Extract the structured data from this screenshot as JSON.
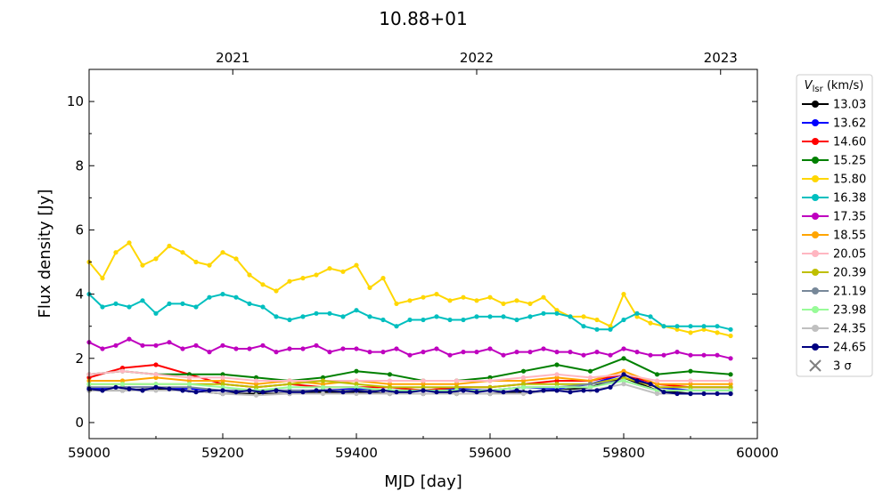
{
  "chart_data": {
    "type": "line",
    "title": "10.88+01",
    "xlabel": "MJD [day]",
    "ylabel": "Flux density [Jy]",
    "xlim": [
      59000,
      60000
    ],
    "ylim": [
      -0.5,
      11
    ],
    "xticks": [
      "59000",
      "59200",
      "59400",
      "59600",
      "59800",
      "60000"
    ],
    "yticks": [
      "0",
      "2",
      "4",
      "6",
      "8",
      "10"
    ],
    "top_axis_ticks": [
      {
        "label": "2021",
        "mjd": 59215
      },
      {
        "label": "2022",
        "mjd": 59580
      },
      {
        "label": "2023",
        "mjd": 59945
      }
    ],
    "legend": {
      "title": "V_lsr (km/s)",
      "title_main": "V",
      "title_sub": "lsr",
      "title_unit": " (km/s)",
      "position": "outside-right",
      "extra_entry": {
        "label": "3 σ",
        "color": "#7f7f7f",
        "marker": "x"
      }
    },
    "grid": false,
    "series": [
      {
        "name": "13.03",
        "color": "#000000",
        "x": [
          59000,
          59050,
          59100,
          59150,
          59200,
          59250,
          59300,
          59350,
          59400,
          59450,
          59500,
          59550,
          59600,
          59650,
          59700,
          59750,
          59800,
          59850,
          59900,
          59960
        ],
        "y": [
          1.0,
          1.0,
          1.05,
          1.0,
          0.9,
          0.9,
          0.9,
          0.95,
          0.95,
          0.9,
          0.9,
          0.9,
          0.9,
          0.95,
          1.0,
          1.1,
          1.4,
          1.0,
          0.9,
          0.9
        ]
      },
      {
        "name": "13.62",
        "color": "#0000ff",
        "x": [
          59000,
          59050,
          59100,
          59150,
          59200,
          59250,
          59300,
          59350,
          59400,
          59450,
          59500,
          59550,
          59600,
          59650,
          59700,
          59750,
          59800,
          59850,
          59900,
          59960
        ],
        "y": [
          1.05,
          1.1,
          1.1,
          1.05,
          1.0,
          1.0,
          1.0,
          1.0,
          1.05,
          1.0,
          1.0,
          1.05,
          1.0,
          1.1,
          1.05,
          1.2,
          1.5,
          1.1,
          1.0,
          1.0
        ]
      },
      {
        "name": "14.60",
        "color": "#ff0000",
        "x": [
          59000,
          59050,
          59100,
          59150,
          59200,
          59250,
          59300,
          59350,
          59400,
          59450,
          59500,
          59550,
          59600,
          59650,
          59700,
          59750,
          59800,
          59850,
          59900,
          59960
        ],
        "y": [
          1.4,
          1.7,
          1.8,
          1.5,
          1.2,
          1.1,
          1.2,
          1.1,
          1.1,
          1.1,
          1.0,
          1.1,
          1.1,
          1.2,
          1.3,
          1.3,
          1.5,
          1.2,
          1.1,
          1.1
        ]
      },
      {
        "name": "15.25",
        "color": "#008000",
        "x": [
          59000,
          59050,
          59100,
          59150,
          59200,
          59250,
          59300,
          59350,
          59400,
          59450,
          59500,
          59550,
          59600,
          59650,
          59700,
          59750,
          59800,
          59850,
          59900,
          59960
        ],
        "y": [
          1.5,
          1.6,
          1.5,
          1.5,
          1.5,
          1.4,
          1.3,
          1.4,
          1.6,
          1.5,
          1.3,
          1.3,
          1.4,
          1.6,
          1.8,
          1.6,
          2.0,
          1.5,
          1.6,
          1.5
        ]
      },
      {
        "name": "15.80",
        "color": "#ffd700",
        "x": [
          59000,
          59020,
          59040,
          59060,
          59080,
          59100,
          59120,
          59140,
          59160,
          59180,
          59200,
          59220,
          59240,
          59260,
          59280,
          59300,
          59320,
          59340,
          59360,
          59380,
          59400,
          59420,
          59440,
          59460,
          59480,
          59500,
          59520,
          59540,
          59560,
          59580,
          59600,
          59620,
          59640,
          59660,
          59680,
          59700,
          59720,
          59740,
          59760,
          59780,
          59800,
          59820,
          59840,
          59860,
          59880,
          59900,
          59920,
          59940,
          59960
        ],
        "y": [
          5.0,
          4.5,
          5.3,
          5.6,
          4.9,
          5.1,
          5.5,
          5.3,
          5.0,
          4.9,
          5.3,
          5.1,
          4.6,
          4.3,
          4.1,
          4.4,
          4.5,
          4.6,
          4.8,
          4.7,
          4.9,
          4.2,
          4.5,
          3.7,
          3.8,
          3.9,
          4.0,
          3.8,
          3.9,
          3.8,
          3.9,
          3.7,
          3.8,
          3.7,
          3.9,
          3.5,
          3.3,
          3.3,
          3.2,
          3.0,
          4.0,
          3.3,
          3.1,
          3.0,
          2.9,
          2.8,
          2.9,
          2.8,
          2.7
        ]
      },
      {
        "name": "16.38",
        "color": "#00bfbf",
        "x": [
          59000,
          59020,
          59040,
          59060,
          59080,
          59100,
          59120,
          59140,
          59160,
          59180,
          59200,
          59220,
          59240,
          59260,
          59280,
          59300,
          59320,
          59340,
          59360,
          59380,
          59400,
          59420,
          59440,
          59460,
          59480,
          59500,
          59520,
          59540,
          59560,
          59580,
          59600,
          59620,
          59640,
          59660,
          59680,
          59700,
          59720,
          59740,
          59760,
          59780,
          59800,
          59820,
          59840,
          59860,
          59880,
          59900,
          59920,
          59940,
          59960
        ],
        "y": [
          4.0,
          3.6,
          3.7,
          3.6,
          3.8,
          3.4,
          3.7,
          3.7,
          3.6,
          3.9,
          4.0,
          3.9,
          3.7,
          3.6,
          3.3,
          3.2,
          3.3,
          3.4,
          3.4,
          3.3,
          3.5,
          3.3,
          3.2,
          3.0,
          3.2,
          3.2,
          3.3,
          3.2,
          3.2,
          3.3,
          3.3,
          3.3,
          3.2,
          3.3,
          3.4,
          3.4,
          3.3,
          3.0,
          2.9,
          2.9,
          3.2,
          3.4,
          3.3,
          3.0,
          3.0,
          3.0,
          3.0,
          3.0,
          2.9
        ]
      },
      {
        "name": "17.35",
        "color": "#bf00bf",
        "x": [
          59000,
          59020,
          59040,
          59060,
          59080,
          59100,
          59120,
          59140,
          59160,
          59180,
          59200,
          59220,
          59240,
          59260,
          59280,
          59300,
          59320,
          59340,
          59360,
          59380,
          59400,
          59420,
          59440,
          59460,
          59480,
          59500,
          59520,
          59540,
          59560,
          59580,
          59600,
          59620,
          59640,
          59660,
          59680,
          59700,
          59720,
          59740,
          59760,
          59780,
          59800,
          59820,
          59840,
          59860,
          59880,
          59900,
          59920,
          59940,
          59960
        ],
        "y": [
          2.5,
          2.3,
          2.4,
          2.6,
          2.4,
          2.4,
          2.5,
          2.3,
          2.4,
          2.2,
          2.4,
          2.3,
          2.3,
          2.4,
          2.2,
          2.3,
          2.3,
          2.4,
          2.2,
          2.3,
          2.3,
          2.2,
          2.2,
          2.3,
          2.1,
          2.2,
          2.3,
          2.1,
          2.2,
          2.2,
          2.3,
          2.1,
          2.2,
          2.2,
          2.3,
          2.2,
          2.2,
          2.1,
          2.2,
          2.1,
          2.3,
          2.2,
          2.1,
          2.1,
          2.2,
          2.1,
          2.1,
          2.1,
          2.0
        ]
      },
      {
        "name": "18.55",
        "color": "#ffa500",
        "x": [
          59000,
          59050,
          59100,
          59150,
          59200,
          59250,
          59300,
          59350,
          59400,
          59450,
          59500,
          59550,
          59600,
          59650,
          59700,
          59750,
          59800,
          59850,
          59900,
          59960
        ],
        "y": [
          1.3,
          1.3,
          1.4,
          1.3,
          1.3,
          1.2,
          1.3,
          1.2,
          1.3,
          1.2,
          1.2,
          1.2,
          1.3,
          1.3,
          1.4,
          1.3,
          1.6,
          1.2,
          1.2,
          1.2
        ]
      },
      {
        "name": "20.05",
        "color": "#ffb6c1",
        "x": [
          59000,
          59050,
          59100,
          59150,
          59200,
          59250,
          59300,
          59350,
          59400,
          59450,
          59500,
          59550,
          59600,
          59650,
          59700,
          59750,
          59800,
          59850,
          59900,
          59960
        ],
        "y": [
          1.5,
          1.6,
          1.5,
          1.4,
          1.4,
          1.3,
          1.3,
          1.3,
          1.3,
          1.3,
          1.3,
          1.3,
          1.3,
          1.4,
          1.5,
          1.4,
          1.5,
          1.3,
          1.3,
          1.3
        ]
      },
      {
        "name": "20.39",
        "color": "#bfbf00",
        "x": [
          59000,
          59050,
          59100,
          59150,
          59200,
          59250,
          59300,
          59350,
          59400,
          59450,
          59500,
          59550,
          59600,
          59650,
          59700,
          59750,
          59800,
          59850,
          59900,
          59960
        ],
        "y": [
          1.2,
          1.2,
          1.2,
          1.2,
          1.2,
          1.1,
          1.2,
          1.3,
          1.2,
          1.1,
          1.1,
          1.1,
          1.1,
          1.2,
          1.2,
          1.2,
          1.4,
          1.1,
          1.1,
          1.1
        ]
      },
      {
        "name": "21.19",
        "color": "#778899",
        "x": [
          59000,
          59050,
          59100,
          59150,
          59200,
          59250,
          59300,
          59350,
          59400,
          59450,
          59500,
          59550,
          59600,
          59650,
          59700,
          59750,
          59800,
          59850,
          59900,
          59960
        ],
        "y": [
          1.1,
          1.1,
          1.1,
          1.1,
          1.0,
          1.0,
          1.0,
          1.0,
          1.0,
          1.0,
          1.0,
          1.0,
          1.0,
          1.1,
          1.1,
          1.2,
          1.3,
          1.0,
          1.0,
          1.0
        ]
      },
      {
        "name": "23.98",
        "color": "#98fb98",
        "x": [
          59000,
          59050,
          59100,
          59150,
          59200,
          59250,
          59300,
          59350,
          59400,
          59450,
          59500,
          59550,
          59600,
          59650,
          59700,
          59750,
          59800,
          59850,
          59900,
          59960
        ],
        "y": [
          1.2,
          1.2,
          1.2,
          1.2,
          1.1,
          1.0,
          1.1,
          1.1,
          1.1,
          1.0,
          1.0,
          1.0,
          1.0,
          1.1,
          1.1,
          1.1,
          1.3,
          1.0,
          1.0,
          1.0
        ]
      },
      {
        "name": "24.35",
        "color": "#c0c0c0",
        "x": [
          59000,
          59050,
          59100,
          59150,
          59200,
          59250,
          59300,
          59350,
          59400,
          59450,
          59500,
          59550,
          59600,
          59650,
          59700,
          59750,
          59800,
          59850,
          59900,
          59960
        ],
        "y": [
          1.0,
          1.0,
          1.0,
          1.0,
          0.9,
          0.85,
          0.9,
          0.9,
          0.9,
          0.9,
          0.9,
          0.9,
          0.9,
          0.9,
          1.0,
          1.0,
          1.2,
          0.9,
          0.9,
          0.9
        ]
      },
      {
        "name": "24.65",
        "color": "#000080",
        "x": [
          59000,
          59020,
          59040,
          59060,
          59080,
          59100,
          59120,
          59140,
          59160,
          59180,
          59200,
          59220,
          59240,
          59260,
          59280,
          59300,
          59320,
          59340,
          59360,
          59380,
          59400,
          59420,
          59440,
          59460,
          59480,
          59500,
          59520,
          59540,
          59560,
          59580,
          59600,
          59620,
          59640,
          59660,
          59680,
          59700,
          59720,
          59740,
          59760,
          59780,
          59800,
          59820,
          59840,
          59860,
          59880,
          59900,
          59920,
          59940,
          59960
        ],
        "y": [
          1.05,
          1.0,
          1.1,
          1.05,
          1.0,
          1.1,
          1.05,
          1.0,
          0.95,
          1.0,
          1.0,
          0.95,
          1.0,
          0.95,
          1.0,
          0.95,
          0.95,
          1.0,
          1.0,
          0.95,
          1.0,
          0.95,
          1.0,
          0.95,
          0.95,
          1.0,
          0.95,
          0.95,
          1.0,
          0.95,
          1.0,
          0.95,
          1.0,
          0.95,
          1.0,
          1.0,
          0.95,
          1.0,
          1.0,
          1.1,
          1.5,
          1.3,
          1.2,
          0.95,
          0.9,
          0.9,
          0.9,
          0.9,
          0.9
        ]
      }
    ]
  }
}
